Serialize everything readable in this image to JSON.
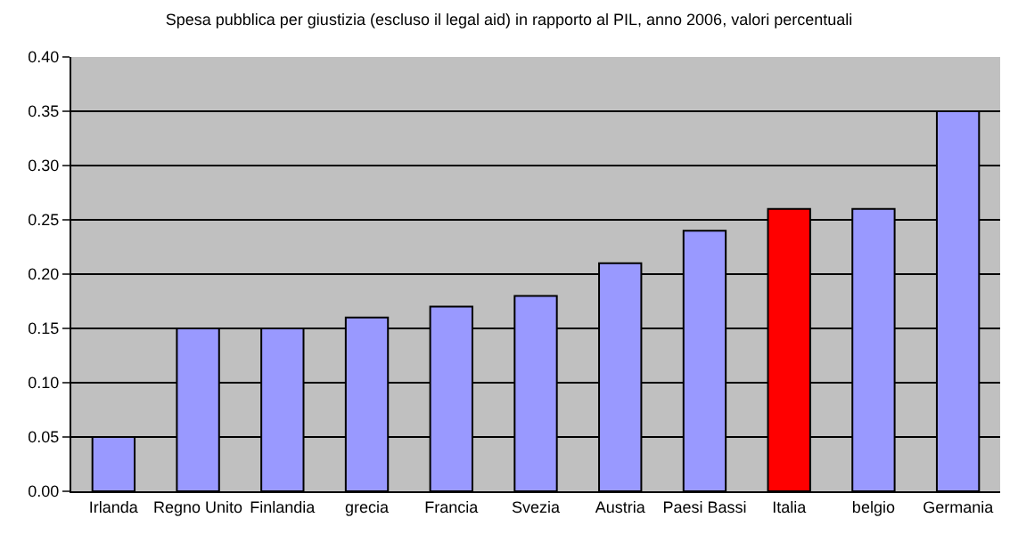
{
  "chart_data": {
    "type": "bar",
    "title": "Spesa pubblica per giustizia (escluso il legal aid) in rapporto al PIL, anno 2006, valori percentuali",
    "categories": [
      "Irlanda",
      "Regno Unito",
      "Finlandia",
      "grecia",
      "Francia",
      "Svezia",
      "Austria",
      "Paesi Bassi",
      "Italia",
      "belgio",
      "Germania"
    ],
    "values": [
      0.05,
      0.15,
      0.15,
      0.16,
      0.17,
      0.18,
      0.21,
      0.24,
      0.26,
      0.26,
      0.35
    ],
    "colors": [
      "#9999ff",
      "#9999ff",
      "#9999ff",
      "#9999ff",
      "#9999ff",
      "#9999ff",
      "#9999ff",
      "#9999ff",
      "#ff0000",
      "#9999ff",
      "#9999ff"
    ],
    "ylim": [
      0,
      0.4
    ],
    "yticks": [
      {
        "value": 0,
        "label": "0.00"
      },
      {
        "value": 0.05,
        "label": "0.05"
      },
      {
        "value": 0.1,
        "label": "0.10"
      },
      {
        "value": 0.15,
        "label": "0.15"
      },
      {
        "value": 0.2,
        "label": "0.20"
      },
      {
        "value": 0.25,
        "label": "0.25"
      },
      {
        "value": 0.3,
        "label": "0.30"
      },
      {
        "value": 0.35,
        "label": "0.35"
      },
      {
        "value": 0.4,
        "label": "0.40"
      }
    ],
    "grid": "y"
  }
}
